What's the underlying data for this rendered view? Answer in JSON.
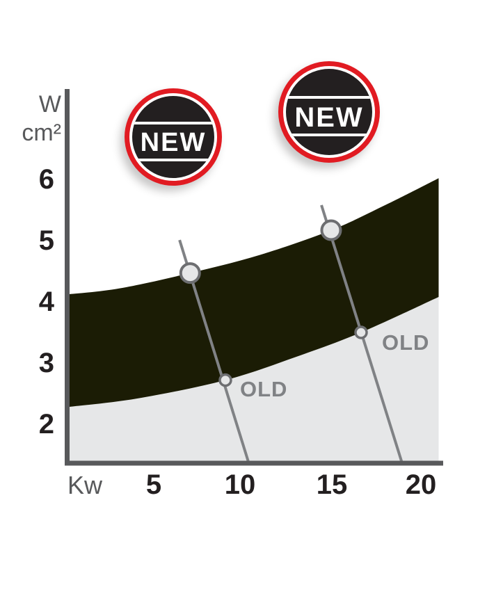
{
  "y_axis": {
    "unit_line1": "W",
    "unit_line2": "cm²",
    "ticks": [
      "6",
      "5",
      "4",
      "3",
      "2"
    ]
  },
  "x_axis": {
    "unit": "Kw",
    "ticks": [
      "5",
      "10",
      "15",
      "20"
    ]
  },
  "badges": [
    {
      "label": "NEW"
    },
    {
      "label": "NEW"
    }
  ],
  "annotations": [
    {
      "label": "OLD"
    },
    {
      "label": "OLD"
    }
  ],
  "colors": {
    "band_new": "#1b1c05",
    "band_old": "#e6e7e8",
    "axis": "#58595b",
    "tick_text": "#231f20",
    "unit_text": "#58595b",
    "old_label": "#808285",
    "callout_line": "#808285",
    "marker_fill": "#e6e7e8",
    "marker_stroke": "#6d6e71",
    "badge_red": "#e11b22",
    "badge_dark": "#231f20"
  },
  "chart_data": {
    "type": "area",
    "title": "",
    "xlabel": "Kw",
    "ylabel": "W/cm²",
    "x_ticks": [
      5,
      10,
      15,
      20
    ],
    "y_ticks": [
      6,
      5,
      4,
      3,
      2
    ],
    "x_range": [
      0,
      21.1
    ],
    "y_range": [
      1.36,
      6.6
    ],
    "grid": false,
    "legend": "none",
    "bands": [
      {
        "name": "NEW",
        "style": "dark",
        "upper": [
          [
            0,
            4.12
          ],
          [
            3,
            4.22
          ],
          [
            7,
            4.47
          ],
          [
            11,
            4.77
          ],
          [
            15,
            5.17
          ],
          [
            18,
            5.57
          ],
          [
            21.1,
            6.02
          ]
        ],
        "lower": [
          [
            0,
            2.28
          ],
          [
            4,
            2.42
          ],
          [
            9,
            2.72
          ],
          [
            13,
            3.1
          ],
          [
            16.7,
            3.5
          ],
          [
            21.1,
            4.08
          ]
        ]
      },
      {
        "name": "OLD",
        "style": "light",
        "upper": [
          [
            0,
            2.28
          ],
          [
            4,
            2.42
          ],
          [
            9,
            2.72
          ],
          [
            13,
            3.1
          ],
          [
            16.7,
            3.5
          ],
          [
            21.1,
            4.08
          ]
        ],
        "lower_y": 1.36
      }
    ],
    "markers": [
      {
        "series": "NEW",
        "x": 7,
        "y": 4.47,
        "size": "large"
      },
      {
        "series": "NEW",
        "x": 15,
        "y": 5.17,
        "size": "large"
      },
      {
        "series": "OLD",
        "x": 9,
        "y": 2.72,
        "size": "small"
      },
      {
        "series": "OLD",
        "x": 16.7,
        "y": 3.5,
        "size": "small"
      }
    ],
    "callout_lines": [
      {
        "x1": 6.4,
        "y1": 5.01,
        "x2": 10.3,
        "y2": 1.39
      },
      {
        "x1": 14.45,
        "y1": 5.58,
        "x2": 19.0,
        "y2": 1.39
      }
    ]
  }
}
